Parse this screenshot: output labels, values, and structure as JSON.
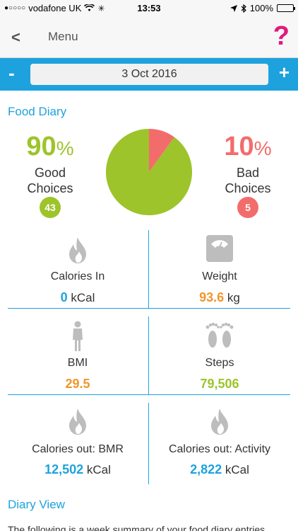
{
  "status_bar": {
    "carrier": "vodafone UK",
    "time": "13:53",
    "battery": "100%",
    "signal_dots": "●○○○○"
  },
  "nav": {
    "back_label": "<",
    "title": "Menu",
    "help_label": "?"
  },
  "date_bar": {
    "minus_label": "-",
    "date": "3 Oct 2016",
    "plus_label": "+"
  },
  "food_diary": {
    "title": "Food Diary",
    "good": {
      "percent": "90",
      "sign": "%",
      "label_line1": "Good",
      "label_line2": "Choices",
      "count": "43",
      "color": "#9dc42a"
    },
    "bad": {
      "percent": "10",
      "sign": "%",
      "label_line1": "Bad",
      "label_line2": "Choices",
      "count": "5",
      "color": "#f36c6c"
    }
  },
  "chart_data": {
    "type": "pie",
    "categories": [
      "Good Choices",
      "Bad Choices"
    ],
    "values": [
      90,
      10
    ],
    "colors": [
      "#9dc42a",
      "#f36c6c"
    ],
    "title": ""
  },
  "stats": {
    "calories_in": {
      "label": "Calories In",
      "value": "0",
      "unit": "kCal",
      "icon": "flame-icon",
      "value_color": "#1ea2dd"
    },
    "weight": {
      "label": "Weight",
      "value": "93.6",
      "unit": "kg",
      "icon": "scale-icon",
      "value_color": "#f0962a"
    },
    "bmi": {
      "label": "BMI",
      "value": "29.5",
      "unit": "",
      "icon": "person-icon",
      "value_color": "#f0962a"
    },
    "steps": {
      "label": "Steps",
      "value": "79,506",
      "unit": "",
      "icon": "footprints-icon",
      "value_color": "#9dc42a"
    },
    "calories_bmr": {
      "label": "Calories out: BMR",
      "value": "12,502",
      "unit": "kCal",
      "icon": "flame-icon",
      "value_color": "#1ea2dd"
    },
    "calories_activity": {
      "label": "Calories out: Activity",
      "value": "2,822",
      "unit": "kCal",
      "icon": "flame-icon",
      "value_color": "#1ea2dd"
    }
  },
  "diary_view": {
    "title": "Diary View",
    "text": "The following is a week summary of your food diary entries"
  }
}
